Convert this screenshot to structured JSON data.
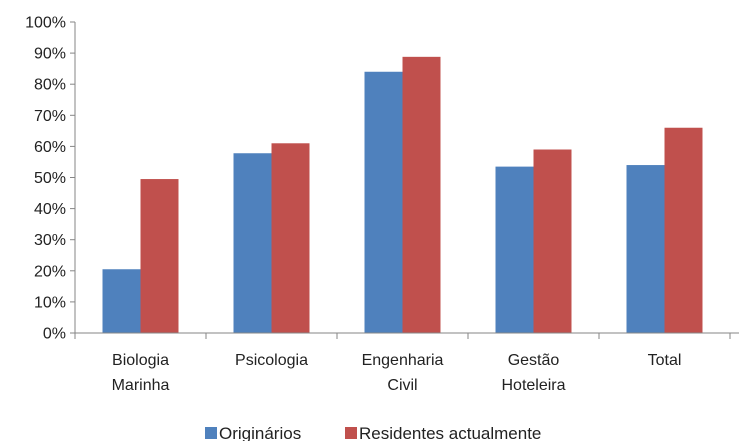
{
  "chart_data": {
    "type": "bar",
    "title": "",
    "xlabel": "",
    "ylabel": "",
    "categories": [
      [
        "Biologia",
        "Marinha"
      ],
      [
        "Psicologia"
      ],
      [
        "Engenharia",
        "Civil"
      ],
      [
        "Gestão",
        "Hoteleira"
      ],
      [
        "Total"
      ]
    ],
    "series": [
      {
        "name": "Originários",
        "color": "#4F81BD",
        "values": [
          20.5,
          57.8,
          84,
          53.5,
          54
        ]
      },
      {
        "name": "Residentes actualmente",
        "color": "#C0504D",
        "values": [
          49.5,
          61,
          88.8,
          59,
          66
        ]
      }
    ],
    "ylim": [
      0,
      100
    ],
    "yticks": [
      "0%",
      "10%",
      "20%",
      "30%",
      "40%",
      "50%",
      "60%",
      "70%",
      "80%",
      "90%",
      "100%"
    ],
    "grid": false,
    "legend_position": "bottom"
  }
}
